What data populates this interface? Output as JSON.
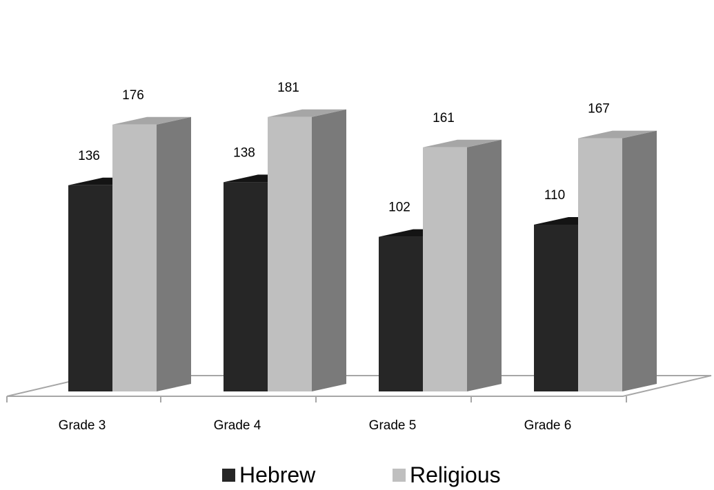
{
  "chart_data": {
    "type": "bar",
    "style": "3d-clustered-column",
    "categories": [
      "Grade 3",
      "Grade 4",
      "Grade 5",
      "Grade 6"
    ],
    "series": [
      {
        "name": "Hebrew",
        "values": [
          136,
          138,
          102,
          110
        ],
        "color": "#262626",
        "top_color": "#141414",
        "side_color": "#111111"
      },
      {
        "name": "Religious",
        "values": [
          176,
          181,
          161,
          167
        ],
        "color": "#bfbfbf",
        "top_color": "#a6a6a6",
        "side_color": "#7a7a7a"
      }
    ],
    "ylim": [
      0,
      200
    ],
    "grid": false,
    "data_labels": true,
    "legend_position": "bottom",
    "axis_color": "#a6a6a6"
  }
}
